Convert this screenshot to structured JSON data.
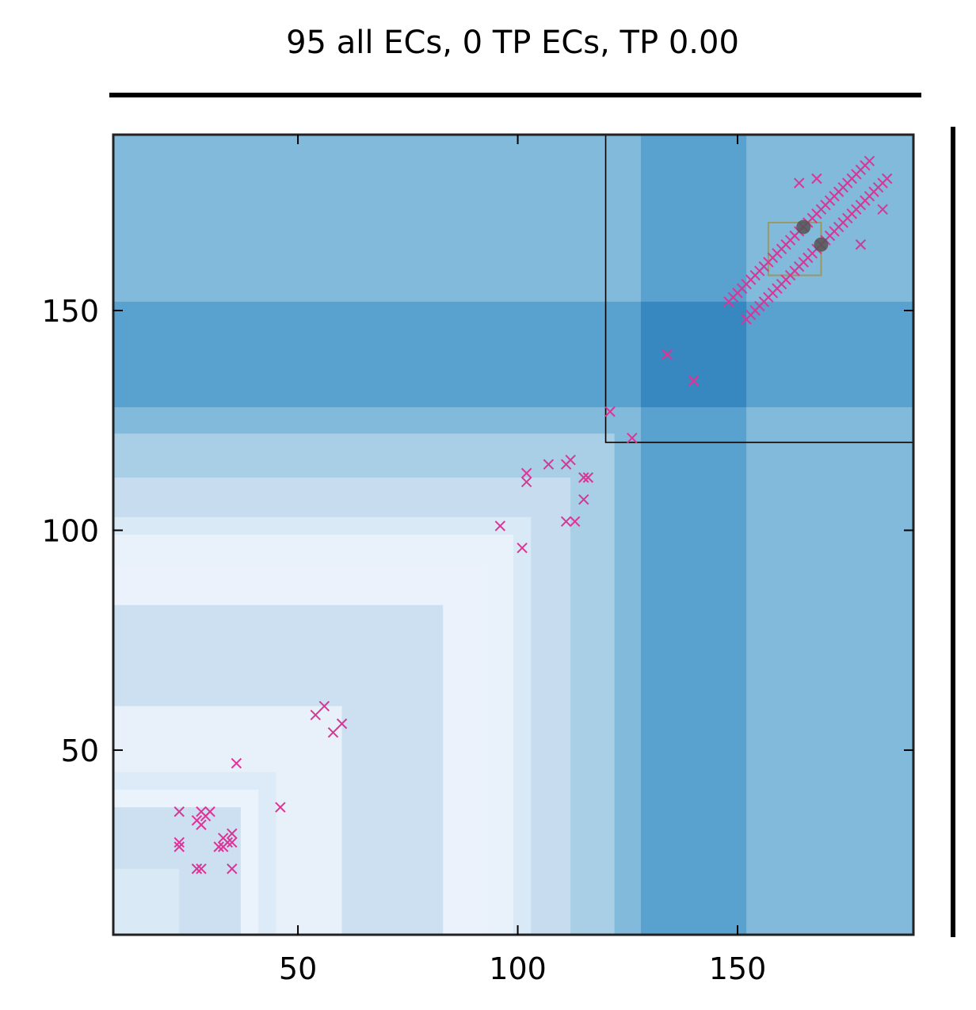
{
  "chart_data": {
    "type": "heatmap",
    "title": "95 all ECs, 0 TP ECs, TP 0.00",
    "xlabel": "",
    "ylabel": "",
    "xlim": [
      8,
      190
    ],
    "ylim": [
      8,
      190
    ],
    "xticks": [
      50,
      100,
      150
    ],
    "yticks": [
      50,
      100,
      150
    ],
    "grid": false,
    "colors": {
      "marker": "#dd3497",
      "frame": "#222222",
      "heat_levels": [
        "#eaf2fb",
        "#dbe9f6",
        "#cadef0",
        "#abd0e6",
        "#82badb",
        "#59a1cf",
        "#3787c0"
      ]
    },
    "heat_bands": [
      {
        "range": [
          8,
          190
        ],
        "level": 4
      },
      {
        "range": [
          8,
          122
        ],
        "level": 3
      },
      {
        "range": [
          8,
          112
        ],
        "level": 2
      },
      {
        "range": [
          8,
          103
        ],
        "level": 1
      },
      {
        "range": [
          8,
          99
        ],
        "level": 0
      },
      {
        "range": [
          8,
          92
        ],
        "level": 0
      },
      {
        "range": [
          8,
          83
        ],
        "level": 2
      },
      {
        "range": [
          8,
          60
        ],
        "level": 0
      },
      {
        "range": [
          8,
          45
        ],
        "level": 1
      },
      {
        "range": [
          8,
          41
        ],
        "level": 0
      },
      {
        "range": [
          8,
          37
        ],
        "level": 2
      },
      {
        "range": [
          8,
          23
        ],
        "level": 1
      },
      {
        "range": [
          128,
          152
        ],
        "level": 5
      }
    ],
    "highlight_block": {
      "range": [
        120,
        190
      ],
      "cross": [
        128,
        152
      ],
      "cross_level": 6
    },
    "highlight_box": {
      "x": [
        157,
        169
      ],
      "y": [
        158,
        170
      ]
    },
    "series": [
      {
        "marker": "x",
        "points": [
          [
            23,
            28
          ],
          [
            23,
            29
          ],
          [
            23,
            36
          ],
          [
            27,
            23
          ],
          [
            27,
            34
          ],
          [
            28,
            23
          ],
          [
            28,
            33
          ],
          [
            28,
            36
          ],
          [
            29,
            35
          ],
          [
            30,
            36
          ],
          [
            32,
            28
          ],
          [
            33,
            30
          ],
          [
            33,
            28
          ],
          [
            34,
            29
          ],
          [
            35,
            31
          ],
          [
            35,
            29
          ],
          [
            35,
            23
          ],
          [
            36,
            47
          ],
          [
            46,
            37
          ],
          [
            54,
            58
          ],
          [
            56,
            60
          ],
          [
            58,
            54
          ],
          [
            60,
            56
          ],
          [
            96,
            101
          ],
          [
            101,
            96
          ],
          [
            102,
            113
          ],
          [
            102,
            111
          ],
          [
            107,
            115
          ],
          [
            111,
            115
          ],
          [
            111,
            102
          ],
          [
            112,
            116
          ],
          [
            113,
            102
          ],
          [
            115,
            107
          ],
          [
            115,
            112
          ],
          [
            116,
            112
          ],
          [
            121,
            127
          ],
          [
            126,
            121
          ],
          [
            134,
            140
          ],
          [
            140,
            134
          ],
          [
            148,
            152
          ],
          [
            149,
            153
          ],
          [
            150,
            154
          ],
          [
            151,
            155
          ],
          [
            152,
            156
          ],
          [
            153,
            157
          ],
          [
            154,
            158
          ],
          [
            155,
            159
          ],
          [
            156,
            160
          ],
          [
            157,
            161
          ],
          [
            158,
            162
          ],
          [
            159,
            163
          ],
          [
            160,
            164
          ],
          [
            161,
            165
          ],
          [
            162,
            166
          ],
          [
            163,
            167
          ],
          [
            164,
            168
          ],
          [
            165,
            169
          ],
          [
            166,
            170
          ],
          [
            167,
            171
          ],
          [
            168,
            172
          ],
          [
            169,
            173
          ],
          [
            170,
            174
          ],
          [
            171,
            175
          ],
          [
            172,
            176
          ],
          [
            173,
            177
          ],
          [
            174,
            178
          ],
          [
            175,
            179
          ],
          [
            176,
            180
          ],
          [
            177,
            181
          ],
          [
            178,
            182
          ],
          [
            179,
            183
          ],
          [
            180,
            184
          ],
          [
            152,
            148
          ],
          [
            153,
            149
          ],
          [
            154,
            150
          ],
          [
            155,
            151
          ],
          [
            156,
            152
          ],
          [
            157,
            153
          ],
          [
            158,
            154
          ],
          [
            159,
            155
          ],
          [
            160,
            156
          ],
          [
            161,
            157
          ],
          [
            162,
            158
          ],
          [
            163,
            159
          ],
          [
            164,
            160
          ],
          [
            165,
            161
          ],
          [
            166,
            162
          ],
          [
            167,
            163
          ],
          [
            168,
            164
          ],
          [
            169,
            165
          ],
          [
            170,
            166
          ],
          [
            171,
            167
          ],
          [
            172,
            168
          ],
          [
            173,
            169
          ],
          [
            174,
            170
          ],
          [
            175,
            171
          ],
          [
            176,
            172
          ],
          [
            177,
            173
          ],
          [
            178,
            174
          ],
          [
            179,
            175
          ],
          [
            180,
            176
          ],
          [
            181,
            177
          ],
          [
            182,
            178
          ],
          [
            183,
            179
          ],
          [
            184,
            180
          ],
          [
            164,
            179
          ],
          [
            168,
            180
          ],
          [
            178,
            165
          ],
          [
            183,
            173
          ]
        ]
      },
      {
        "marker": "o",
        "color": "#555555",
        "points": [
          [
            165,
            169
          ],
          [
            169,
            165
          ]
        ]
      }
    ]
  }
}
